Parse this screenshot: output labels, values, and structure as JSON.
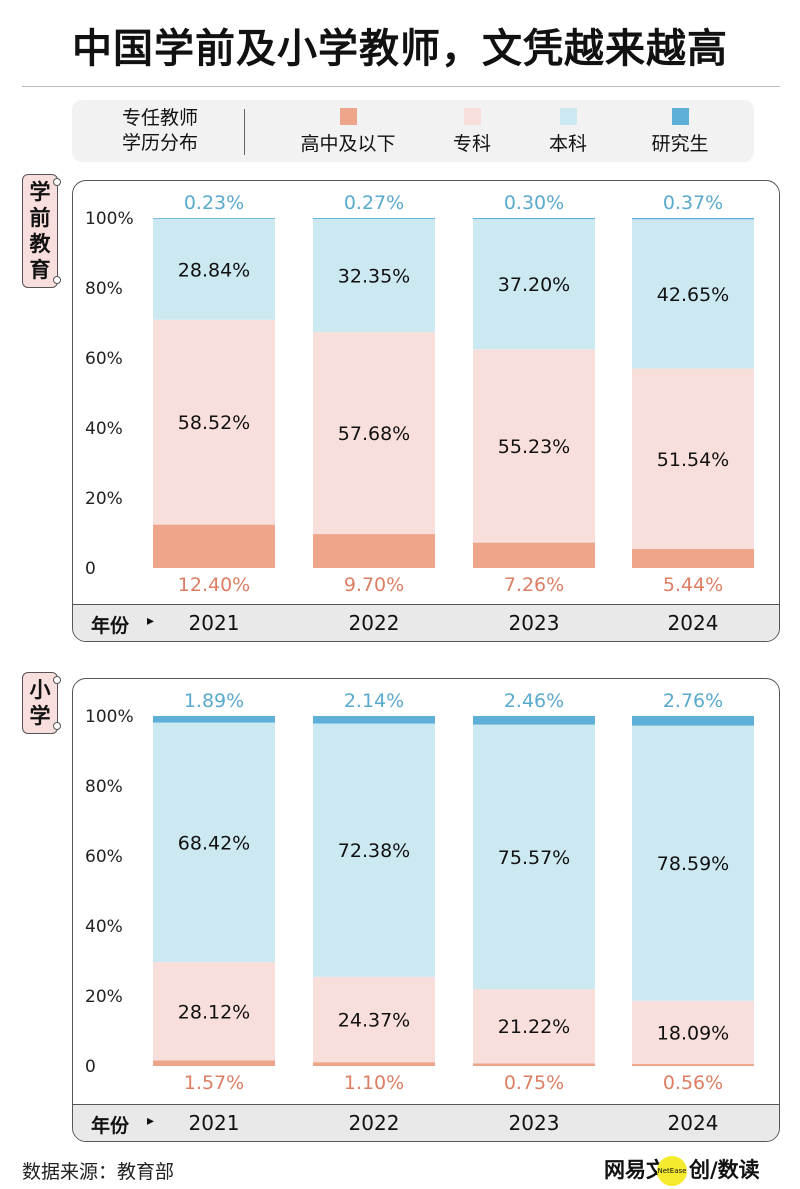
{
  "title": "中国学前及小学教师，文凭越来越高",
  "legend": {
    "title_line1": "专任教师",
    "title_line2": "学历分布",
    "items": [
      {
        "label": "高中及以下",
        "color": "#eea68b"
      },
      {
        "label": "专科",
        "color": "#f8dfdb"
      },
      {
        "label": "本科",
        "color": "#cce8f1"
      },
      {
        "label": "研究生",
        "color": "#5fb0d8"
      }
    ]
  },
  "footer": {
    "year_word": "年份",
    "arrow": "▸"
  },
  "source": "数据来源：教育部",
  "brand": {
    "text1": "网易文",
    "dot_text": "NetEase",
    "text2": "创",
    "text3": "/数读"
  },
  "chart_data": [
    {
      "type": "bar",
      "stacked": true,
      "section": "学前教育",
      "categories": [
        "2021",
        "2022",
        "2023",
        "2024"
      ],
      "series": [
        {
          "name": "高中及以下",
          "values": [
            12.4,
            9.7,
            7.26,
            5.44
          ],
          "labels": [
            "12.40%",
            "9.70%",
            "7.26%",
            "5.44%"
          ]
        },
        {
          "name": "专科",
          "values": [
            58.52,
            57.68,
            55.23,
            51.54
          ],
          "labels": [
            "58.52%",
            "57.68%",
            "55.23%",
            "51.54%"
          ]
        },
        {
          "name": "本科",
          "values": [
            28.84,
            32.35,
            37.2,
            42.65
          ],
          "labels": [
            "28.84%",
            "32.35%",
            "37.20%",
            "42.65%"
          ]
        },
        {
          "name": "研究生",
          "values": [
            0.23,
            0.27,
            0.3,
            0.37
          ],
          "labels": [
            "0.23%",
            "0.27%",
            "0.30%",
            "0.37%"
          ]
        }
      ],
      "yticks": [
        "0",
        "20%",
        "40%",
        "60%",
        "80%",
        "100%"
      ],
      "ylim": [
        0,
        100
      ],
      "grid": false
    },
    {
      "type": "bar",
      "stacked": true,
      "section": "小学",
      "categories": [
        "2021",
        "2022",
        "2023",
        "2024"
      ],
      "series": [
        {
          "name": "高中及以下",
          "values": [
            1.57,
            1.1,
            0.75,
            0.56
          ],
          "labels": [
            "1.57%",
            "1.10%",
            "0.75%",
            "0.56%"
          ]
        },
        {
          "name": "专科",
          "values": [
            28.12,
            24.37,
            21.22,
            18.09
          ],
          "labels": [
            "28.12%",
            "24.37%",
            "21.22%",
            "18.09%"
          ]
        },
        {
          "name": "本科",
          "values": [
            68.42,
            72.38,
            75.57,
            78.59
          ],
          "labels": [
            "68.42%",
            "72.38%",
            "75.57%",
            "78.59%"
          ]
        },
        {
          "name": "研究生",
          "values": [
            1.89,
            2.14,
            2.46,
            2.76
          ],
          "labels": [
            "1.89%",
            "2.14%",
            "2.46%",
            "2.76%"
          ]
        }
      ],
      "yticks": [
        "0",
        "20%",
        "40%",
        "60%",
        "80%",
        "100%"
      ],
      "ylim": [
        0,
        100
      ],
      "grid": false
    }
  ]
}
